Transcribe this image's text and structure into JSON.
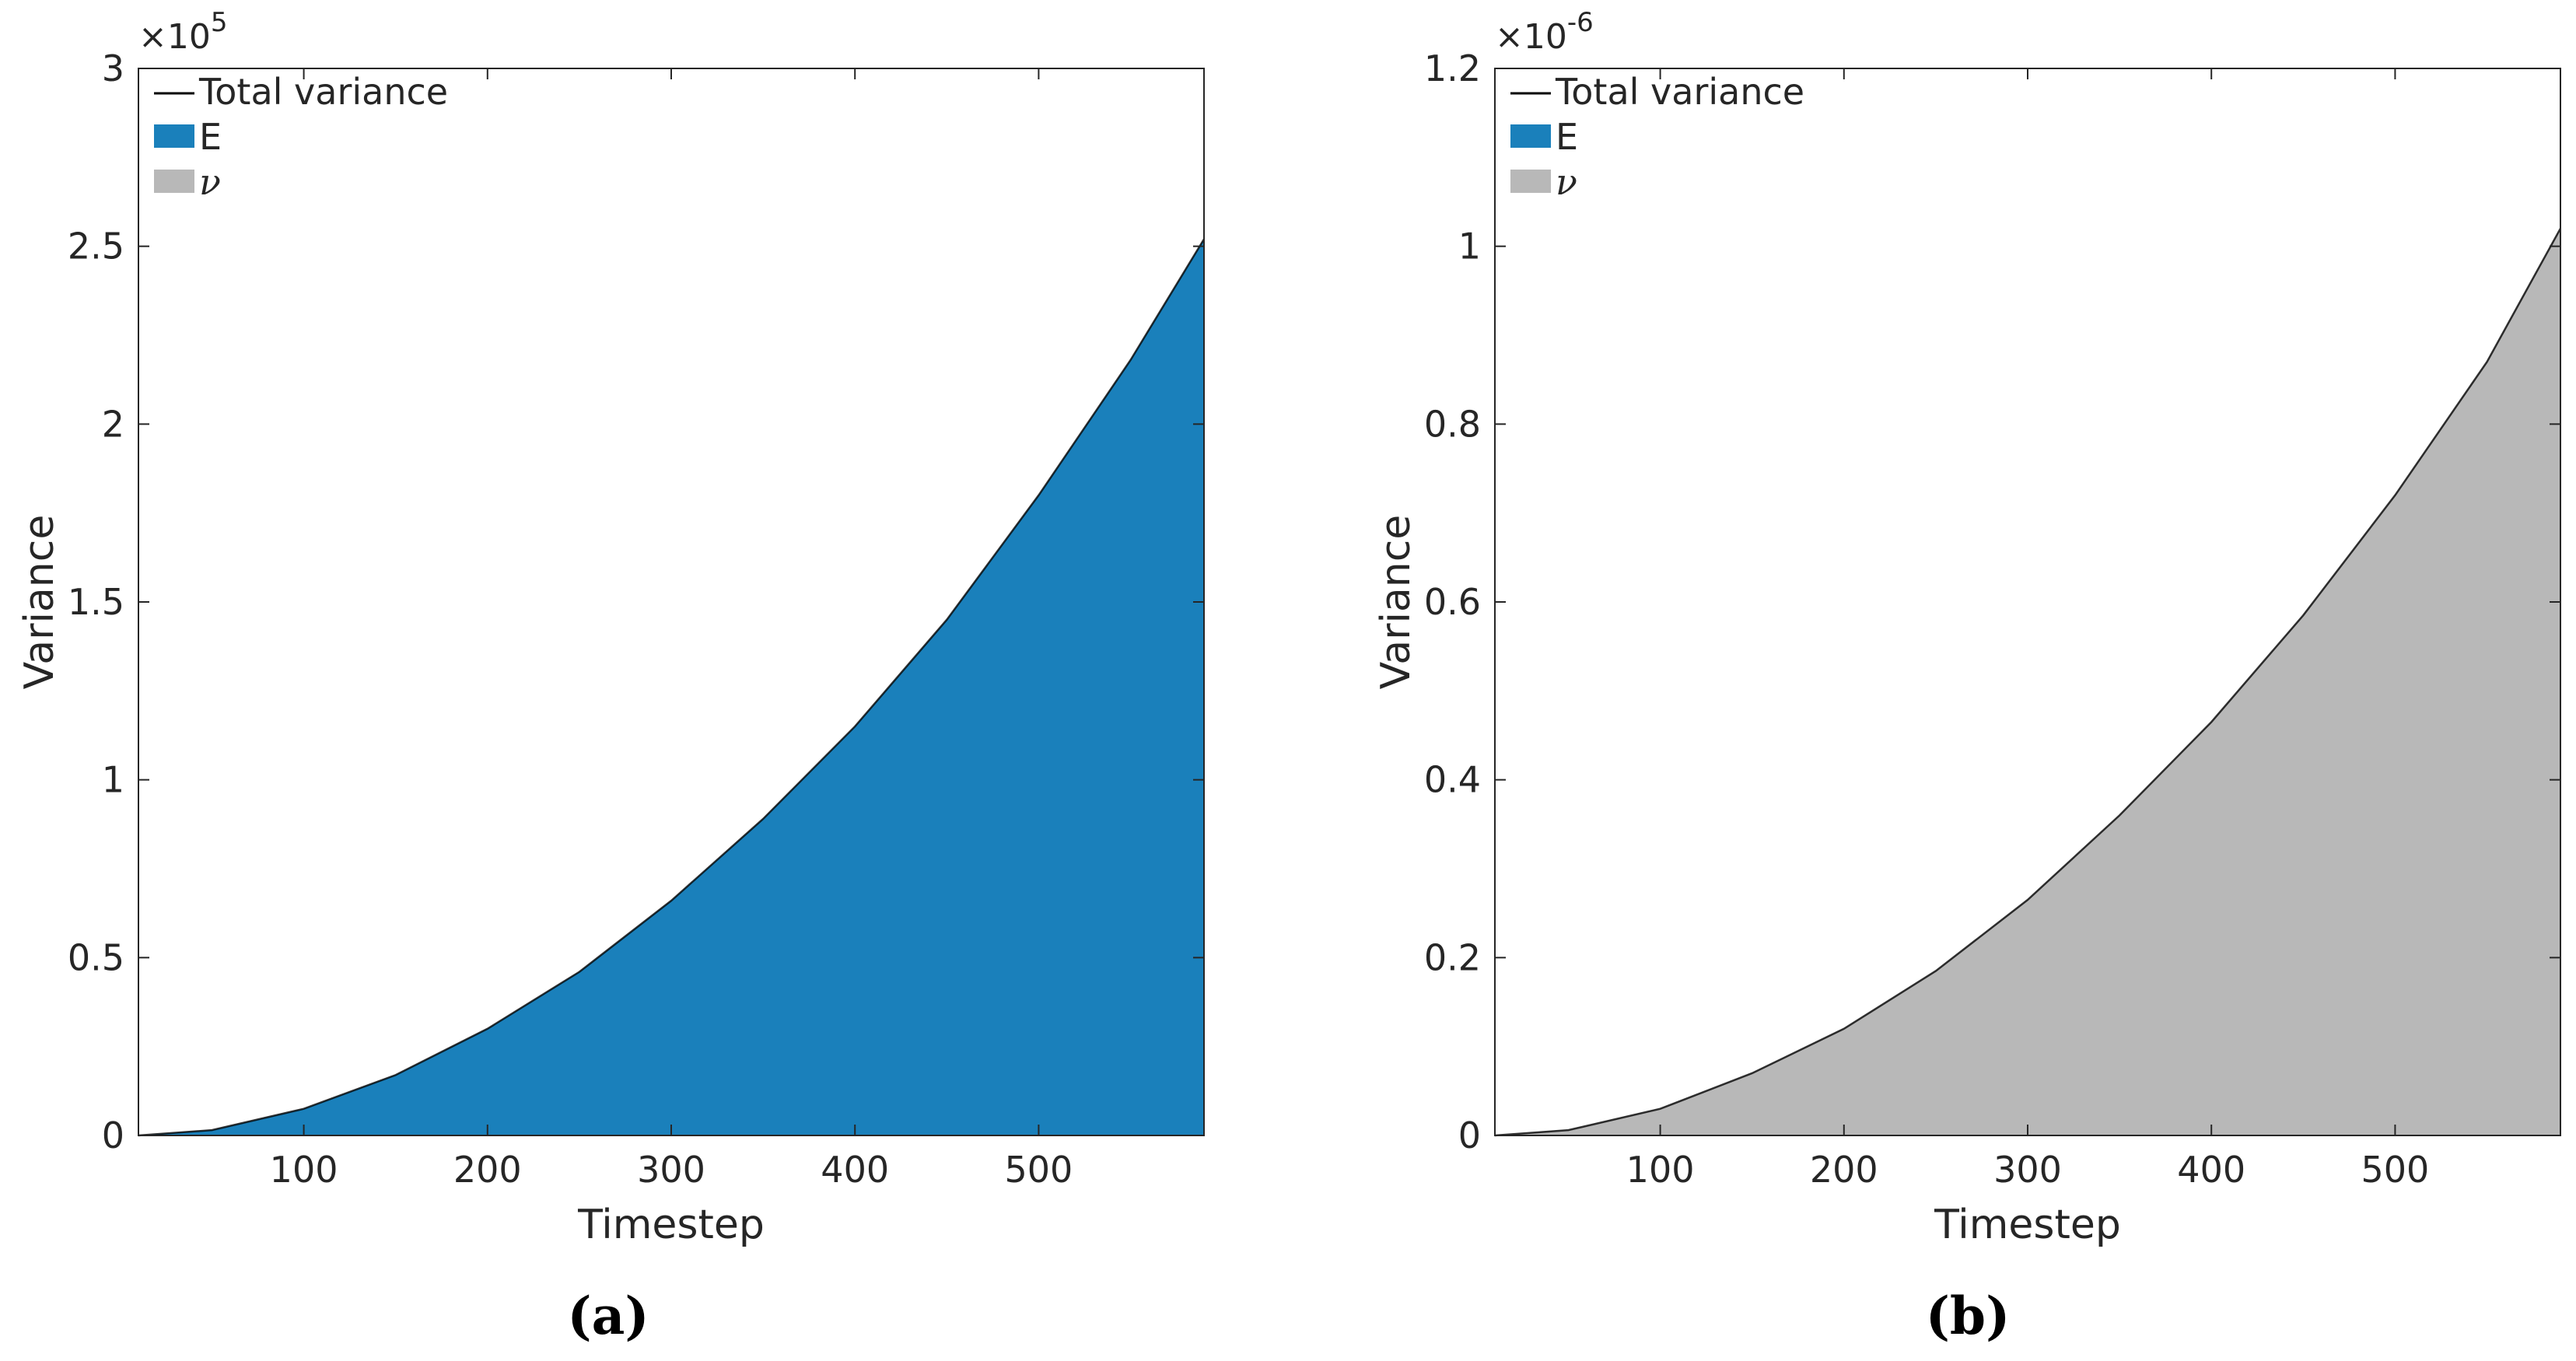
{
  "chart_data": [
    {
      "type": "area",
      "panel_label": "(a)",
      "xlabel": "Timestep",
      "ylabel": "Variance",
      "xlim": [
        10,
        590
      ],
      "ylim": [
        0,
        300000
      ],
      "x_ticks": [
        100,
        200,
        300,
        400,
        500
      ],
      "x_tick_labels": [
        "100",
        "200",
        "300",
        "400",
        "500"
      ],
      "y_ticks": [
        0,
        50000,
        100000,
        150000,
        200000,
        250000,
        300000
      ],
      "y_tick_labels": [
        "0",
        "0.5",
        "1",
        "1.5",
        "2",
        "2.5",
        "3"
      ],
      "y_exponent_label": {
        "base": "×10",
        "power": "5"
      },
      "grid": false,
      "legend_position": "top-left",
      "legend": [
        {
          "label": "Total variance",
          "kind": "line",
          "color": "#000000"
        },
        {
          "label": "E",
          "kind": "patch",
          "color": "#1a80bb"
        },
        {
          "label": "ν",
          "kind": "patch",
          "color": "#b8b8b8",
          "italic": true
        }
      ],
      "x": [
        10,
        50,
        100,
        150,
        200,
        250,
        300,
        350,
        400,
        450,
        500,
        550,
        590
      ],
      "series": [
        {
          "name": "Total variance",
          "kind": "line",
          "color": "#000000",
          "values": [
            0,
            1500,
            7500,
            17000,
            30000,
            46000,
            66000,
            89000,
            115000,
            145000,
            180000,
            218000,
            252000
          ]
        },
        {
          "name": "E",
          "kind": "area",
          "color": "#1a80bb",
          "values": [
            0,
            1500,
            7500,
            17000,
            30000,
            46000,
            66000,
            89000,
            115000,
            145000,
            180000,
            218000,
            252000
          ]
        },
        {
          "name": "ν",
          "kind": "area",
          "color": "#b8b8b8",
          "values": [
            0,
            0,
            0,
            0,
            0,
            0,
            0,
            0,
            0,
            0,
            0,
            0,
            0
          ]
        }
      ]
    },
    {
      "type": "area",
      "panel_label": "(b)",
      "xlabel": "Timestep",
      "ylabel": "Variance",
      "xlim": [
        10,
        590
      ],
      "ylim": [
        0,
        1.2e-06
      ],
      "x_ticks": [
        100,
        200,
        300,
        400,
        500
      ],
      "x_tick_labels": [
        "100",
        "200",
        "300",
        "400",
        "500"
      ],
      "y_ticks": [
        0,
        2e-07,
        4e-07,
        6e-07,
        8e-07,
        1e-06,
        1.2e-06
      ],
      "y_tick_labels": [
        "0",
        "0.2",
        "0.4",
        "0.6",
        "0.8",
        "1",
        "1.2"
      ],
      "y_exponent_label": {
        "base": "×10",
        "power": "-6"
      },
      "grid": false,
      "legend_position": "top-left",
      "legend": [
        {
          "label": "Total variance",
          "kind": "line",
          "color": "#000000"
        },
        {
          "label": "E",
          "kind": "patch",
          "color": "#1a80bb"
        },
        {
          "label": "ν",
          "kind": "patch",
          "color": "#b8b8b8",
          "italic": true
        }
      ],
      "x": [
        10,
        50,
        100,
        150,
        200,
        250,
        300,
        350,
        400,
        450,
        500,
        550,
        590
      ],
      "series": [
        {
          "name": "Total variance",
          "kind": "line",
          "color": "#000000",
          "values": [
            0,
            6e-09,
            3e-08,
            7e-08,
            1.2e-07,
            1.85e-07,
            2.65e-07,
            3.6e-07,
            4.65e-07,
            5.85e-07,
            7.2e-07,
            8.7e-07,
            1.02e-06
          ]
        },
        {
          "name": "E",
          "kind": "area",
          "color": "#1a80bb",
          "values": [
            0,
            0,
            0,
            0,
            0,
            0,
            0,
            0,
            0,
            0,
            0,
            0,
            0
          ]
        },
        {
          "name": "ν",
          "kind": "area",
          "color": "#b8b8b8",
          "values": [
            0,
            6e-09,
            3e-08,
            7e-08,
            1.2e-07,
            1.85e-07,
            2.65e-07,
            3.6e-07,
            4.65e-07,
            5.85e-07,
            7.2e-07,
            8.7e-07,
            1.02e-06
          ]
        }
      ]
    }
  ]
}
